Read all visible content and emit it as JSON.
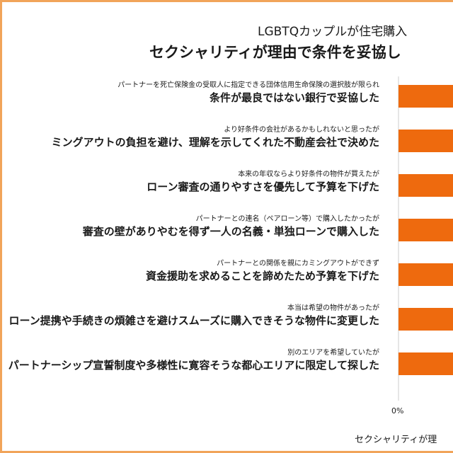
{
  "chart_data": {
    "type": "bar",
    "orientation": "horizontal",
    "title": "LGBTQカップルが住宅購入",
    "subtitle": "セクシャリティが理由で条件を妥協し",
    "xlabel": "セクシャリティが理",
    "x_ticks": [
      "0%"
    ],
    "bar_color": "#ee6a0e",
    "categories": [
      {
        "sub": "パートナーを死亡保険金の受取人に指定できる団体信用生命保険の選択肢が限られ",
        "main": "条件が最良ではない銀行で妥協した"
      },
      {
        "sub": "より好条件の会社があるかもしれないと思ったが",
        "main": "ミングアウトの負担を避け、理解を示してくれた不動産会社で決めた"
      },
      {
        "sub": "本来の年収ならより好条件の物件が買えたが",
        "main": "ローン審査の通りやすさを優先して予算を下げた"
      },
      {
        "sub": "パートナーとの連名（ペアローン等）で購入したかったが",
        "main": "審査の壁がありやむを得ず一人の名義・単独ローンで購入した"
      },
      {
        "sub": "パートナーとの関係を親にカミングアウトができず",
        "main": "資金援助を求めることを諦めたため予算を下げた"
      },
      {
        "sub": "本当は希望の物件があったが",
        "main": "ローン提携や手続きの煩雑さを避けスムーズに購入できそうな物件に変更した"
      },
      {
        "sub": "別のエリアを希望していたが",
        "main": "パートナーシップ宣誓制度や多様性に寛容そうな都心エリアに限定して探した"
      }
    ]
  }
}
